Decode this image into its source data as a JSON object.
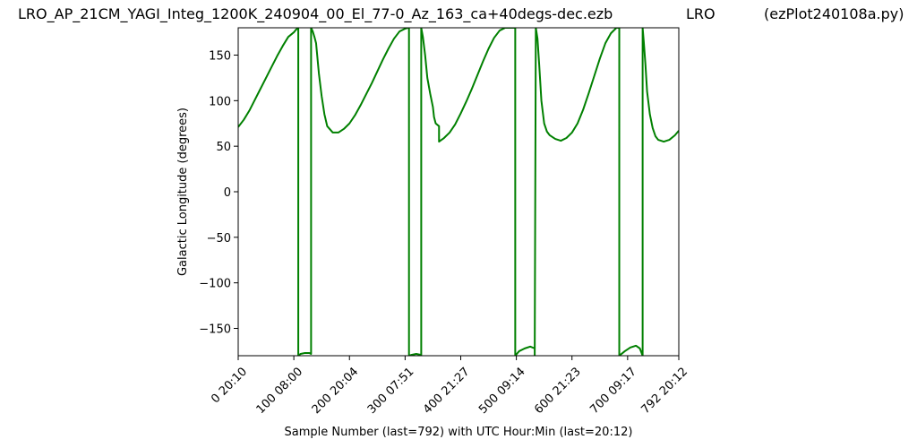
{
  "header": {
    "filename": "LRO_AP_21CM_YAGI_Integ_1200K_240904_00_El_77-0_Az_163_ca+40degs-dec.ezb",
    "station": "LRO",
    "program": "(ezPlot240108a.py)"
  },
  "chart_data": {
    "type": "line",
    "xlabel": "Sample Number (last=792) with UTC Hour:Min (last=20:12)",
    "ylabel": "Galactic Longitude (degrees)",
    "xlim": [
      0,
      792
    ],
    "ylim": [
      -180,
      180
    ],
    "x_ticks": [
      {
        "value": 0,
        "label": "0  20:10"
      },
      {
        "value": 100,
        "label": "100  08:00"
      },
      {
        "value": 200,
        "label": "200  20:04"
      },
      {
        "value": 300,
        "label": "300  07:51"
      },
      {
        "value": 400,
        "label": "400  21:27"
      },
      {
        "value": 500,
        "label": "500  09:14"
      },
      {
        "value": 600,
        "label": "600  21:23"
      },
      {
        "value": 700,
        "label": "700  09:17"
      },
      {
        "value": 792,
        "label": "792  20:12"
      }
    ],
    "y_ticks": [
      {
        "value": 150,
        "label": "150"
      },
      {
        "value": 100,
        "label": "100"
      },
      {
        "value": 50,
        "label": "50"
      },
      {
        "value": 0,
        "label": "0"
      },
      {
        "value": -50,
        "label": "−50"
      },
      {
        "value": -100,
        "label": "−100"
      },
      {
        "value": -150,
        "label": "−150"
      }
    ],
    "line_color": "#008000",
    "series": [
      {
        "x": [
          0,
          10,
          20,
          30,
          40,
          50,
          60,
          70,
          80,
          90,
          100,
          104,
          108,
          108,
          112,
          120,
          128,
          131,
          131,
          134,
          137,
          140,
          145,
          150,
          155,
          160,
          170,
          180,
          190,
          200,
          210,
          220,
          230,
          240,
          250,
          260,
          270,
          280,
          290,
          300,
          305,
          307,
          307,
          312,
          320,
          328,
          329,
          329,
          332,
          336,
          340,
          345,
          350,
          352,
          355,
          361,
          361,
          370,
          380,
          390,
          400,
          410,
          420,
          430,
          440,
          450,
          460,
          470,
          480,
          490,
          495,
          498,
          498,
          505,
          515,
          525,
          533,
          533,
          535,
          538,
          541,
          545,
          550,
          555,
          560,
          570,
          580,
          590,
          600,
          610,
          620,
          630,
          640,
          650,
          660,
          670,
          680,
          685,
          685,
          695,
          705,
          715,
          722,
          727,
          727,
          729,
          732,
          735,
          740,
          745,
          750,
          755,
          765,
          775,
          785,
          792
        ],
        "y": [
          71,
          79,
          89,
          101,
          113,
          125,
          137,
          149,
          160,
          170,
          175,
          178,
          180,
          -180,
          -178,
          -177,
          -177,
          -178,
          180,
          176,
          170,
          163,
          130,
          105,
          85,
          72,
          65,
          65,
          69,
          75,
          84,
          95,
          107,
          119,
          132,
          145,
          157,
          168,
          176,
          179,
          180,
          180,
          -180,
          -179,
          -178,
          -179,
          -180,
          180,
          170,
          150,
          125,
          108,
          93,
          82,
          75,
          72,
          55,
          59,
          65,
          74,
          86,
          99,
          113,
          128,
          143,
          157,
          169,
          177,
          180,
          180,
          180,
          180,
          -180,
          -175,
          -172,
          -170,
          -172,
          -180,
          180,
          168,
          140,
          100,
          75,
          66,
          62,
          58,
          56,
          59,
          65,
          75,
          90,
          108,
          127,
          146,
          163,
          174,
          180,
          180,
          -180,
          -175,
          -171,
          -169,
          -172,
          -180,
          180,
          165,
          140,
          110,
          85,
          70,
          61,
          57,
          55,
          57,
          62,
          67
        ]
      }
    ]
  }
}
